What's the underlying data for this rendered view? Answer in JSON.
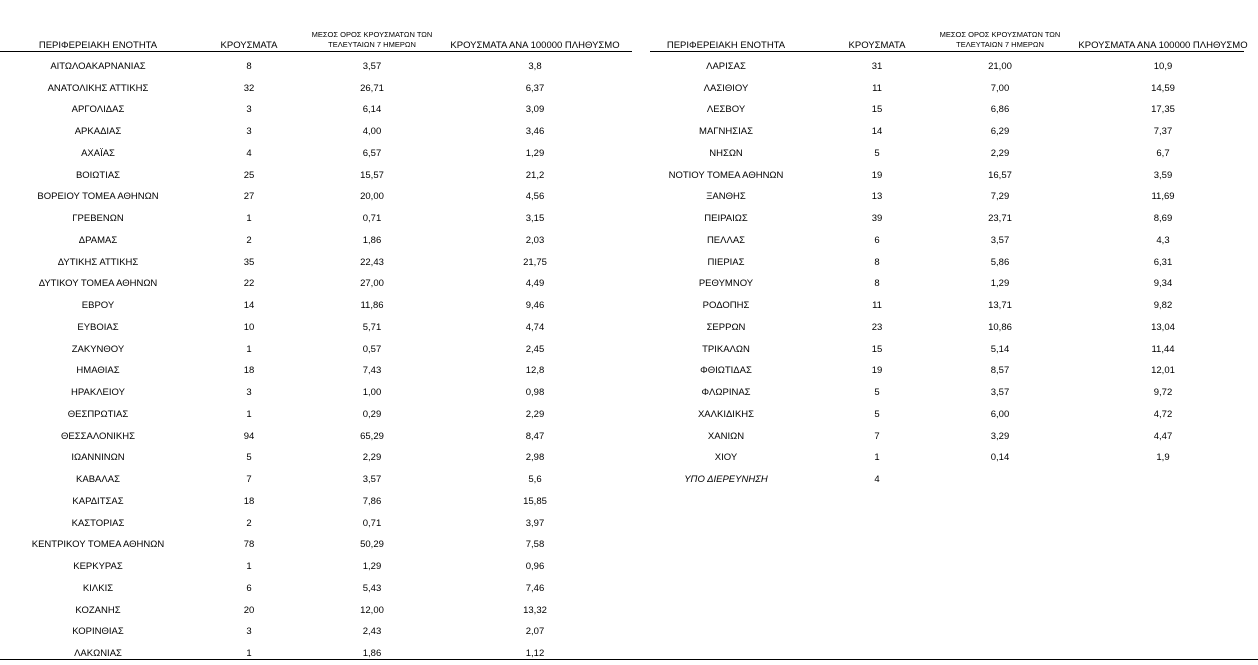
{
  "tables": [
    {
      "header": [
        "ΠΕΡΙΦΕΡΕΙΑΚΗ ΕΝΟΤΗΤΑ",
        "ΚΡΟΥΣΜΑΤΑ",
        "ΜΕΣΟΣ ΟΡΟΣ ΚΡΟΥΣΜΑΤΩΝ ΤΩΝ ΤΕΛΕΥΤΑΙΩΝ 7 ΗΜΕΡΩΝ",
        "ΚΡΟΥΣΜΑΤΑ ΑΝΑ 100000 ΠΛΗΘΥΣΜΟ"
      ],
      "rows": [
        [
          "ΑΙΤΩΛΟΑΚΑΡΝΑΝΙΑΣ",
          "8",
          "3,57",
          "3,8"
        ],
        [
          "ΑΝΑΤΟΛΙΚΗΣ ΑΤΤΙΚΗΣ",
          "32",
          "26,71",
          "6,37"
        ],
        [
          "ΑΡΓΟΛΙΔΑΣ",
          "3",
          "6,14",
          "3,09"
        ],
        [
          "ΑΡΚΑΔΙΑΣ",
          "3",
          "4,00",
          "3,46"
        ],
        [
          "ΑΧΑΪΑΣ",
          "4",
          "6,57",
          "1,29"
        ],
        [
          "ΒΟΙΩΤΙΑΣ",
          "25",
          "15,57",
          "21,2"
        ],
        [
          "ΒΟΡΕΙΟΥ ΤΟΜΕΑ ΑΘΗΝΩΝ",
          "27",
          "20,00",
          "4,56"
        ],
        [
          "ΓΡΕΒΕΝΩΝ",
          "1",
          "0,71",
          "3,15"
        ],
        [
          "ΔΡΑΜΑΣ",
          "2",
          "1,86",
          "2,03"
        ],
        [
          "ΔΥΤΙΚΗΣ ΑΤΤΙΚΗΣ",
          "35",
          "22,43",
          "21,75"
        ],
        [
          "ΔΥΤΙΚΟΥ ΤΟΜΕΑ ΑΘΗΝΩΝ",
          "22",
          "27,00",
          "4,49"
        ],
        [
          "ΕΒΡΟΥ",
          "14",
          "11,86",
          "9,46"
        ],
        [
          "ΕΥΒΟΙΑΣ",
          "10",
          "5,71",
          "4,74"
        ],
        [
          "ΖΑΚΥΝΘΟΥ",
          "1",
          "0,57",
          "2,45"
        ],
        [
          "ΗΜΑΘΙΑΣ",
          "18",
          "7,43",
          "12,8"
        ],
        [
          "ΗΡΑΚΛΕΙΟΥ",
          "3",
          "1,00",
          "0,98"
        ],
        [
          "ΘΕΣΠΡΩΤΙΑΣ",
          "1",
          "0,29",
          "2,29"
        ],
        [
          "ΘΕΣΣΑΛΟΝΙΚΗΣ",
          "94",
          "65,29",
          "8,47"
        ],
        [
          "ΙΩΑΝΝΙΝΩΝ",
          "5",
          "2,29",
          "2,98"
        ],
        [
          "ΚΑΒΑΛΑΣ",
          "7",
          "3,57",
          "5,6"
        ],
        [
          "ΚΑΡΔΙΤΣΑΣ",
          "18",
          "7,86",
          "15,85"
        ],
        [
          "ΚΑΣΤΟΡΙΑΣ",
          "2",
          "0,71",
          "3,97"
        ],
        [
          "ΚΕΝΤΡΙΚΟΥ ΤΟΜΕΑ ΑΘΗΝΩΝ",
          "78",
          "50,29",
          "7,58"
        ],
        [
          "ΚΕΡΚΥΡΑΣ",
          "1",
          "1,29",
          "0,96"
        ],
        [
          "ΚΙΛΚΙΣ",
          "6",
          "5,43",
          "7,46"
        ],
        [
          "ΚΟΖΑΝΗΣ",
          "20",
          "12,00",
          "13,32"
        ],
        [
          "ΚΟΡΙΝΘΙΑΣ",
          "3",
          "2,43",
          "2,07"
        ],
        [
          "ΛΑΚΩΝΙΑΣ",
          "1",
          "1,86",
          "1,12"
        ]
      ]
    },
    {
      "header": [
        "ΠΕΡΙΦΕΡΕΙΑΚΗ ΕΝΟΤΗΤΑ",
        "ΚΡΟΥΣΜΑΤΑ",
        "ΜΕΣΟΣ ΟΡΟΣ ΚΡΟΥΣΜΑΤΩΝ ΤΩΝ ΤΕΛΕΥΤΑΙΩΝ 7 ΗΜΕΡΩΝ",
        "ΚΡΟΥΣΜΑΤΑ ΑΝΑ 100000 ΠΛΗΘΥΣΜΟ"
      ],
      "rows": [
        [
          "ΛΑΡΙΣΑΣ",
          "31",
          "21,00",
          "10,9"
        ],
        [
          "ΛΑΣΙΘΙΟΥ",
          "11",
          "7,00",
          "14,59"
        ],
        [
          "ΛΕΣΒΟΥ",
          "15",
          "6,86",
          "17,35"
        ],
        [
          "ΜΑΓΝΗΣΙΑΣ",
          "14",
          "6,29",
          "7,37"
        ],
        [
          "ΝΗΣΩΝ",
          "5",
          "2,29",
          "6,7"
        ],
        [
          "ΝΟΤΙΟΥ ΤΟΜΕΑ ΑΘΗΝΩΝ",
          "19",
          "16,57",
          "3,59"
        ],
        [
          "ΞΑΝΘΗΣ",
          "13",
          "7,29",
          "11,69"
        ],
        [
          "ΠΕΙΡΑΙΩΣ",
          "39",
          "23,71",
          "8,69"
        ],
        [
          "ΠΕΛΛΑΣ",
          "6",
          "3,57",
          "4,3"
        ],
        [
          "ΠΙΕΡΙΑΣ",
          "8",
          "5,86",
          "6,31"
        ],
        [
          "ΡΕΘΥΜΝΟΥ",
          "8",
          "1,29",
          "9,34"
        ],
        [
          "ΡΟΔΟΠΗΣ",
          "11",
          "13,71",
          "9,82"
        ],
        [
          "ΣΕΡΡΩΝ",
          "23",
          "10,86",
          "13,04"
        ],
        [
          "ΤΡΙΚΑΛΩΝ",
          "15",
          "5,14",
          "11,44"
        ],
        [
          "ΦΘΙΩΤΙΔΑΣ",
          "19",
          "8,57",
          "12,01"
        ],
        [
          "ΦΛΩΡΙΝΑΣ",
          "5",
          "3,57",
          "9,72"
        ],
        [
          "ΧΑΛΚΙΔΙΚΗΣ",
          "5",
          "6,00",
          "4,72"
        ],
        [
          "ΧΑΝΙΩΝ",
          "7",
          "3,29",
          "4,47"
        ],
        [
          "ΧΙΟΥ",
          "1",
          "0,14",
          "1,9"
        ],
        [
          "ΥΠΟ ΔΙΕΡΕΥΝΗΣΗ",
          "4"
        ]
      ]
    }
  ]
}
